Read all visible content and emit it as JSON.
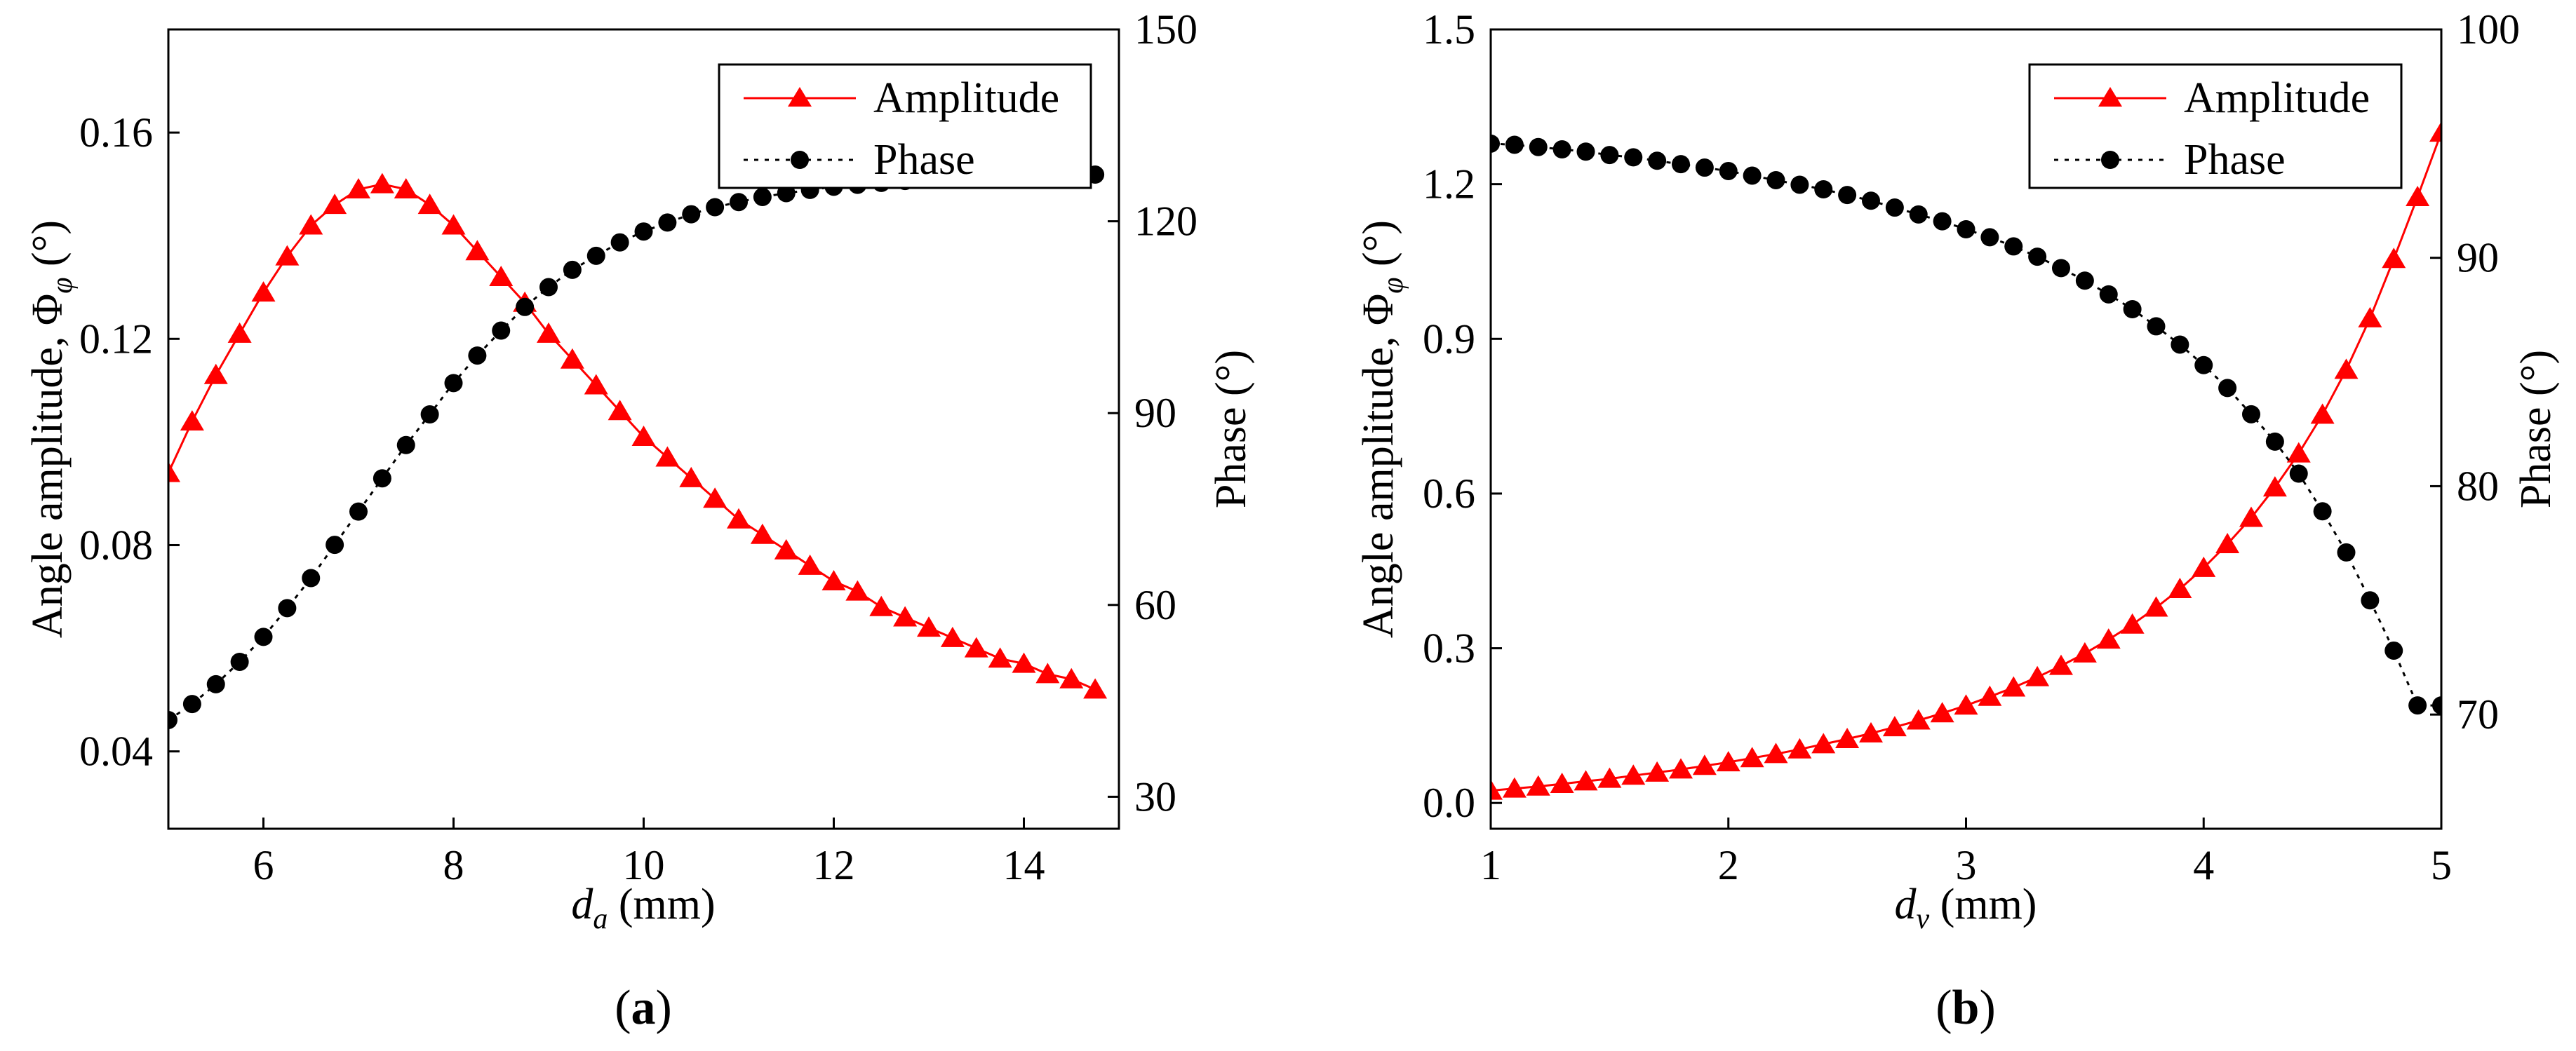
{
  "colors": {
    "amplitude": "#ff0000",
    "phase": "#000000",
    "axes": "#000000"
  },
  "chart_data": [
    {
      "type": "line",
      "panel_label": {
        "pre": "(",
        "letter": "a",
        "post": ")"
      },
      "xlabel": {
        "var": "d",
        "sub": "a",
        "unit": " (mm)"
      },
      "ylabel_left": {
        "main": "Angle amplitude, Φ",
        "sub": "φ",
        "unit": " (°)"
      },
      "ylabel_right": "Phase (°)",
      "xlim": [
        5,
        15
      ],
      "ylim_left": [
        0.025,
        0.18
      ],
      "ylim_right": [
        25,
        150
      ],
      "xticks": [
        6,
        8,
        10,
        12,
        14
      ],
      "xtick_labels": [
        "6",
        "8",
        "10",
        "12",
        "14"
      ],
      "yticks_left": [
        0.04,
        0.08,
        0.12,
        0.16
      ],
      "ytick_labels_left": [
        "0.04",
        "0.08",
        "0.12",
        "0.16"
      ],
      "yticks_right": [
        30,
        60,
        90,
        120,
        150
      ],
      "ytick_labels_right": [
        "30",
        "60",
        "90",
        "120",
        "150"
      ],
      "legend": {
        "position": "top-right",
        "entries": [
          "Amplitude",
          "Phase"
        ]
      },
      "series": [
        {
          "name": "Amplitude",
          "axis": "left",
          "marker": "triangle",
          "line": "solid",
          "x": [
            5.0,
            5.25,
            5.5,
            5.75,
            6.0,
            6.25,
            6.5,
            6.75,
            7.0,
            7.25,
            7.5,
            7.75,
            8.0,
            8.25,
            8.5,
            8.75,
            9.0,
            9.25,
            9.5,
            9.75,
            10.0,
            10.25,
            10.5,
            10.75,
            11.0,
            11.25,
            11.5,
            11.75,
            12.0,
            12.25,
            12.5,
            12.75,
            13.0,
            13.25,
            13.5,
            13.75,
            14.0,
            14.25,
            14.5,
            14.75
          ],
          "y": [
            0.094,
            0.104,
            0.113,
            0.121,
            0.129,
            0.136,
            0.142,
            0.146,
            0.149,
            0.15,
            0.149,
            0.146,
            0.142,
            0.137,
            0.132,
            0.127,
            0.121,
            0.116,
            0.111,
            0.106,
            0.101,
            0.097,
            0.093,
            0.089,
            0.085,
            0.082,
            0.079,
            0.076,
            0.073,
            0.071,
            0.068,
            0.066,
            0.064,
            0.062,
            0.06,
            0.058,
            0.057,
            0.055,
            0.054,
            0.052
          ]
        },
        {
          "name": "Phase",
          "axis": "right",
          "marker": "circle",
          "line": "dotted",
          "x": [
            5.0,
            5.25,
            5.5,
            5.75,
            6.0,
            6.25,
            6.5,
            6.75,
            7.0,
            7.25,
            7.5,
            7.75,
            8.0,
            8.25,
            8.5,
            8.75,
            9.0,
            9.25,
            9.5,
            9.75,
            10.0,
            10.25,
            10.5,
            10.75,
            11.0,
            11.25,
            11.5,
            11.75,
            12.0,
            12.25,
            12.5,
            12.75,
            13.0,
            13.25,
            13.5,
            13.75,
            14.0,
            14.25,
            14.5,
            14.75
          ],
          "y": [
            42.0,
            44.5,
            47.6,
            51.1,
            55.0,
            59.5,
            64.2,
            69.4,
            74.6,
            79.8,
            85.0,
            89.8,
            94.7,
            99.0,
            102.9,
            106.6,
            109.7,
            112.4,
            114.6,
            116.7,
            118.4,
            119.8,
            121.1,
            122.2,
            123.0,
            123.8,
            124.4,
            124.9,
            125.4,
            125.7,
            126.0,
            126.3,
            126.5,
            126.7,
            126.8,
            127.0,
            127.1,
            127.2,
            127.3,
            127.3
          ]
        }
      ]
    },
    {
      "type": "line",
      "panel_label": {
        "pre": "(",
        "letter": "b",
        "post": ")"
      },
      "xlabel": {
        "var": "d",
        "sub": "v",
        "unit": " (mm)"
      },
      "ylabel_left": {
        "main": "Angle amplitude, Φ",
        "sub": "φ",
        "unit": " (°)"
      },
      "ylabel_right": "Phase (°)",
      "xlim": [
        1,
        5
      ],
      "ylim_left": [
        -0.05,
        1.5
      ],
      "ylim_right": [
        65,
        100
      ],
      "xticks": [
        1,
        2,
        3,
        4,
        5
      ],
      "xtick_labels": [
        "1",
        "2",
        "3",
        "4",
        "5"
      ],
      "yticks_left": [
        0.0,
        0.3,
        0.6,
        0.9,
        1.2,
        1.5
      ],
      "ytick_labels_left": [
        "0.0",
        "0.3",
        "0.6",
        "0.9",
        "1.2",
        "1.5"
      ],
      "yticks_right": [
        70,
        80,
        90,
        100
      ],
      "ytick_labels_right": [
        "70",
        "80",
        "90",
        "100"
      ],
      "legend": {
        "position": "top-right",
        "entries": [
          "Amplitude",
          "Phase"
        ]
      },
      "series": [
        {
          "name": "Amplitude",
          "axis": "left",
          "marker": "triangle",
          "line": "solid",
          "x": [
            1.0,
            1.1,
            1.2,
            1.3,
            1.4,
            1.5,
            1.6,
            1.7,
            1.8,
            1.9,
            2.0,
            2.1,
            2.2,
            2.3,
            2.4,
            2.5,
            2.6,
            2.7,
            2.8,
            2.9,
            3.0,
            3.1,
            3.2,
            3.3,
            3.4,
            3.5,
            3.6,
            3.7,
            3.8,
            3.9,
            4.0,
            4.1,
            4.2,
            4.3,
            4.4,
            4.5,
            4.6,
            4.7,
            4.8,
            4.9,
            5.0
          ],
          "y": [
            0.024,
            0.028,
            0.032,
            0.037,
            0.042,
            0.047,
            0.053,
            0.059,
            0.065,
            0.072,
            0.079,
            0.087,
            0.095,
            0.104,
            0.114,
            0.124,
            0.135,
            0.147,
            0.16,
            0.174,
            0.189,
            0.206,
            0.224,
            0.244,
            0.266,
            0.29,
            0.317,
            0.346,
            0.379,
            0.415,
            0.456,
            0.502,
            0.553,
            0.612,
            0.678,
            0.753,
            0.84,
            0.94,
            1.055,
            1.175,
            1.3
          ]
        },
        {
          "name": "Phase",
          "axis": "right",
          "marker": "circle",
          "line": "dotted",
          "x": [
            1.0,
            1.1,
            1.2,
            1.3,
            1.4,
            1.5,
            1.6,
            1.7,
            1.8,
            1.9,
            2.0,
            2.1,
            2.2,
            2.3,
            2.4,
            2.5,
            2.6,
            2.7,
            2.8,
            2.9,
            3.0,
            3.1,
            3.2,
            3.3,
            3.4,
            3.5,
            3.6,
            3.7,
            3.8,
            3.9,
            4.0,
            4.1,
            4.2,
            4.3,
            4.4,
            4.5,
            4.6,
            4.7,
            4.8,
            4.9,
            5.0
          ],
          "y": [
            95.0,
            94.95,
            94.85,
            94.75,
            94.65,
            94.5,
            94.4,
            94.25,
            94.1,
            93.95,
            93.8,
            93.6,
            93.4,
            93.2,
            93.0,
            92.75,
            92.5,
            92.2,
            91.9,
            91.6,
            91.25,
            90.9,
            90.5,
            90.05,
            89.55,
            89.0,
            88.4,
            87.75,
            87.0,
            86.2,
            85.3,
            84.3,
            83.15,
            81.95,
            80.55,
            78.9,
            77.1,
            75.0,
            72.8,
            70.4,
            70.4
          ]
        }
      ]
    }
  ]
}
